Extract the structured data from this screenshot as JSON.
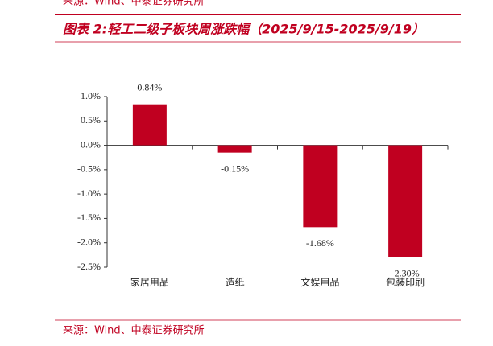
{
  "header_source": "来源：Wind、中泰证券研究所",
  "chart_data": {
    "type": "bar",
    "title": "图表 2:轻工二级子板块周涨跌幅（2025/9/15-2025/9/19）",
    "categories": [
      "家居用品",
      "造纸",
      "文娱用品",
      "包装印刷"
    ],
    "values": [
      0.84,
      -0.15,
      -1.68,
      -2.3
    ],
    "value_labels": [
      "0.84%",
      "-0.15%",
      "-1.68%",
      "-2.30%"
    ],
    "color": "#c00020",
    "ylim": [
      -2.5,
      1.0
    ],
    "yticks": [
      {
        "value": 1.0,
        "label": "1.0%"
      },
      {
        "value": 0.5,
        "label": "0.5%"
      },
      {
        "value": 0.0,
        "label": "0.0%"
      },
      {
        "value": -0.5,
        "label": "-0.5%"
      },
      {
        "value": -1.0,
        "label": "-1.0%"
      },
      {
        "value": -1.5,
        "label": "-1.5%"
      },
      {
        "value": -2.0,
        "label": "-2.0%"
      },
      {
        "value": -2.5,
        "label": "-2.5%"
      }
    ],
    "grid": false,
    "source": "来源：Wind、中泰证券研究所"
  }
}
